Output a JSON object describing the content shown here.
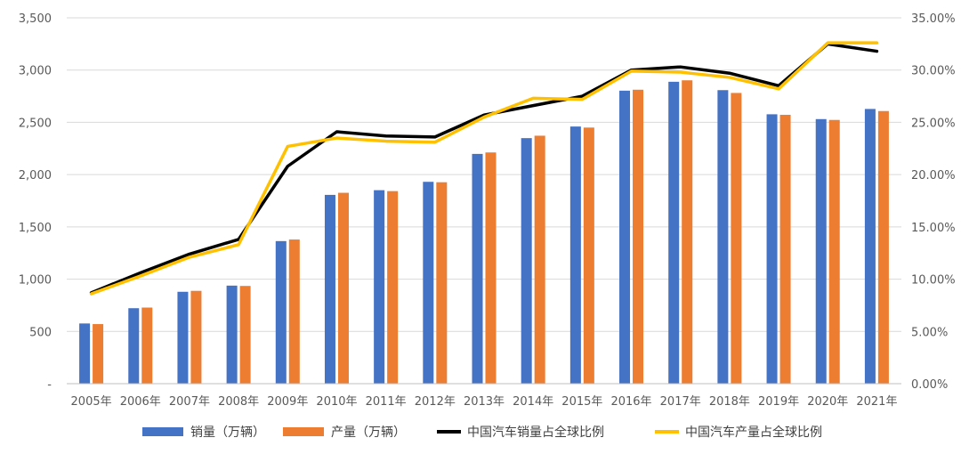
{
  "chart_data": {
    "type": "bar",
    "categories": [
      "2005年",
      "2006年",
      "2007年",
      "2008年",
      "2009年",
      "2010年",
      "2011年",
      "2012年",
      "2013年",
      "2014年",
      "2015年",
      "2016年",
      "2017年",
      "2018年",
      "2019年",
      "2020年",
      "2021年"
    ],
    "series": [
      {
        "name": "销量（万辆）",
        "type": "bar",
        "axis": "left",
        "color": "#4472C4",
        "values": [
          576,
          722,
          879,
          938,
          1364,
          1806,
          1851,
          1931,
          2198,
          2349,
          2460,
          2803,
          2888,
          2808,
          2577,
          2531,
          2628
        ]
      },
      {
        "name": "产量（万辆）",
        "type": "bar",
        "axis": "left",
        "color": "#ED7D31",
        "values": [
          570,
          728,
          888,
          935,
          1379,
          1826,
          1842,
          1927,
          2212,
          2372,
          2450,
          2812,
          2902,
          2781,
          2572,
          2523,
          2608
        ]
      },
      {
        "name": "中国汽车销量占全球比例",
        "type": "line",
        "axis": "right",
        "color": "#000000",
        "values": [
          8.7,
          10.6,
          12.4,
          13.8,
          20.8,
          24.1,
          23.7,
          23.6,
          25.7,
          26.6,
          27.5,
          30.0,
          30.3,
          29.7,
          28.5,
          32.5,
          31.8
        ]
      },
      {
        "name": "中国汽车产量占全球比例",
        "type": "line",
        "axis": "right",
        "color": "#FFC000",
        "values": [
          8.6,
          10.3,
          12.1,
          13.3,
          22.7,
          23.5,
          23.2,
          23.1,
          25.5,
          27.3,
          27.2,
          29.9,
          29.8,
          29.3,
          28.2,
          32.6,
          32.6
        ]
      }
    ],
    "left_axis": {
      "ylim": [
        0,
        3500
      ],
      "ticks": [
        "-",
        "500",
        "1,000",
        "1,500",
        "2,000",
        "2,500",
        "3,000",
        "3,500"
      ]
    },
    "right_axis": {
      "ylim": [
        0,
        35
      ],
      "ticks": [
        "0.00%",
        "5.00%",
        "10.00%",
        "15.00%",
        "20.00%",
        "25.00%",
        "30.00%",
        "35.00%"
      ]
    },
    "grid": true,
    "legend_position": "bottom"
  }
}
